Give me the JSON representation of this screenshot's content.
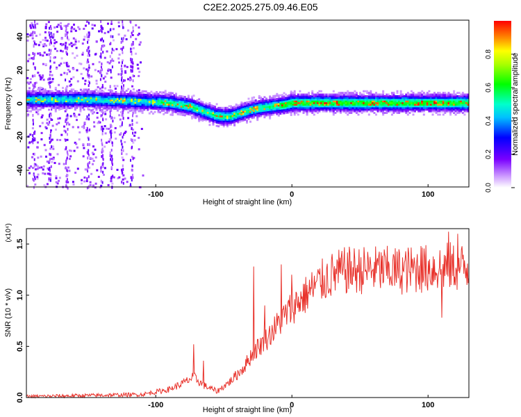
{
  "title": "C2E2.2025.275.09.46.E05",
  "chart_data": [
    {
      "type": "heatmap",
      "name": "spectrogram",
      "xlabel": "Height of straight line (km)",
      "ylabel": "Frequency (Hz)",
      "xlim": [
        -195,
        130
      ],
      "ylim": [
        -50,
        50
      ],
      "xticks": [
        -100,
        0,
        100
      ],
      "xtick_labels": [
        "-100",
        "0",
        "100"
      ],
      "yticks": [
        -40,
        -20,
        0,
        20,
        40
      ],
      "ytick_labels": [
        "-40",
        "-20",
        "0",
        "20",
        "40"
      ],
      "colorbar": {
        "label": "Normalized spectral amplitude",
        "range": [
          0,
          1
        ],
        "ticks": [
          0.0,
          0.2,
          0.4,
          0.6,
          0.8
        ],
        "tick_labels": [
          "0.0",
          "0.2",
          "0.4",
          "0.6",
          "0.8"
        ],
        "colormap": [
          "#ffffff",
          "#9b30ff",
          "#0000ff",
          "#00ffff",
          "#00ff00",
          "#ffff00",
          "#ff0000"
        ]
      },
      "ridge": {
        "x": [
          -195,
          -150,
          -110,
          -90,
          -75,
          -65,
          -55,
          -45,
          -35,
          -25,
          -15,
          -5,
          0,
          20,
          60,
          100,
          130
        ],
        "frequency": [
          3,
          3,
          2,
          1,
          -1,
          -4,
          -7,
          -7,
          -4,
          -2,
          -1,
          0,
          1,
          1,
          1,
          1,
          1
        ]
      }
    },
    {
      "type": "line",
      "name": "snr",
      "xlabel": "Height of straight line (km)",
      "ylabel": "SNR (10 * v/v)",
      "scale_label": "(x10⁴)",
      "xlim": [
        -195,
        130
      ],
      "ylim": [
        0,
        1.65
      ],
      "xticks": [
        -100,
        0,
        100
      ],
      "xtick_labels": [
        "-100",
        "0",
        "100"
      ],
      "yticks": [
        0.0,
        0.5,
        1.0,
        1.5
      ],
      "ytick_labels": [
        "0.0",
        "0.5",
        "1.0",
        "1.5"
      ],
      "color": "#e8312a",
      "x": [
        -195,
        -150,
        -110,
        -90,
        -80,
        -72,
        -65,
        -55,
        -45,
        -35,
        -28,
        -20,
        -10,
        0,
        10,
        20,
        30,
        40,
        60,
        80,
        100,
        115,
        130
      ],
      "y": [
        0.01,
        0.02,
        0.03,
        0.08,
        0.14,
        0.2,
        0.12,
        0.06,
        0.16,
        0.3,
        0.45,
        0.55,
        0.72,
        0.88,
        1.0,
        1.12,
        1.2,
        1.24,
        1.25,
        1.24,
        1.26,
        1.28,
        1.27
      ],
      "spikes": [
        {
          "x": -72,
          "y": 0.52
        },
        {
          "x": -65,
          "y": 0.36
        },
        {
          "x": -28,
          "y": 1.28
        },
        {
          "x": -20,
          "y": 0.9
        },
        {
          "x": -8,
          "y": 1.3
        },
        {
          "x": 0,
          "y": 1.2
        },
        {
          "x": 95,
          "y": 1.48
        },
        {
          "x": 110,
          "y": 0.78
        },
        {
          "x": 115,
          "y": 1.62
        },
        {
          "x": 122,
          "y": 1.6
        }
      ]
    }
  ]
}
